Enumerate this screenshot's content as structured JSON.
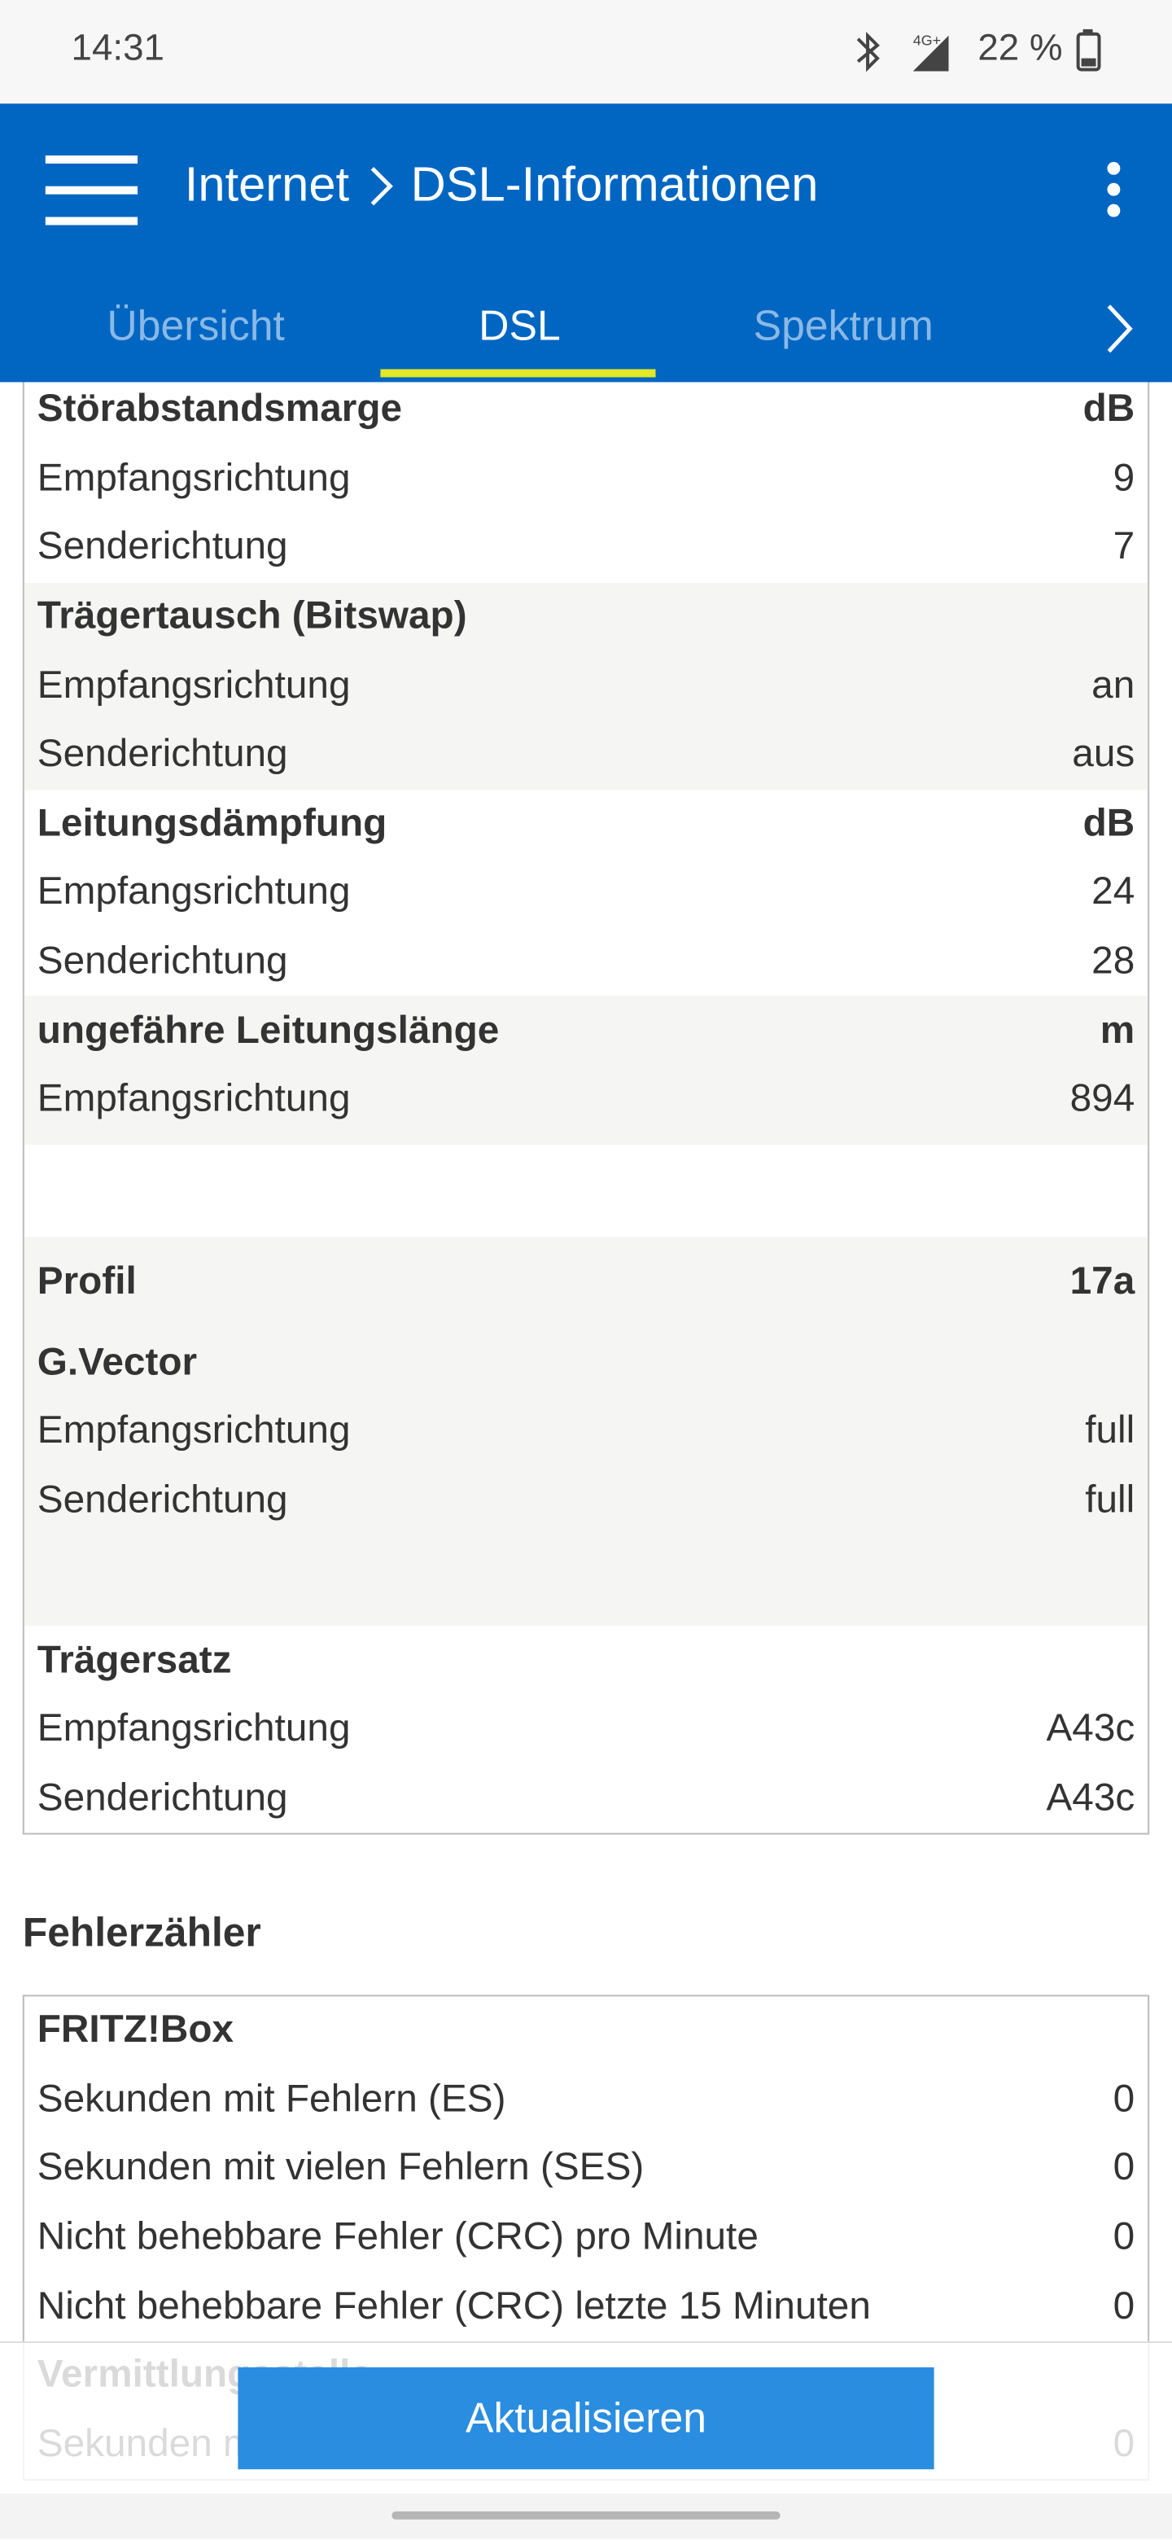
{
  "status_bar": {
    "time": "14:31",
    "network": "4G+",
    "battery": "22 %"
  },
  "app_bar": {
    "breadcrumb": [
      "Internet",
      "DSL-Informationen"
    ]
  },
  "tabs": {
    "items": [
      "Übersicht",
      "DSL",
      "Spektrum"
    ],
    "active": 1
  },
  "table": {
    "groups": [
      {
        "title": "Störabstandsmarge",
        "value": "dB",
        "rows": [
          [
            "Empfangsrichtung",
            "9"
          ],
          [
            "Senderichtung",
            "7"
          ]
        ]
      },
      {
        "title": "Trägertausch (Bitswap)",
        "rows": [
          [
            "Empfangsrichtung",
            "an"
          ],
          [
            "Senderichtung",
            "aus"
          ]
        ]
      },
      {
        "title": "Leitungsdämpfung",
        "value": "dB",
        "rows": [
          [
            "Empfangsrichtung",
            "24"
          ],
          [
            "Senderichtung",
            "28"
          ]
        ]
      },
      {
        "title": "ungefähre Leitungslänge",
        "value": "m",
        "rows": [
          [
            "Empfangsrichtung",
            "894"
          ]
        ]
      },
      {
        "title": "Profil",
        "value": "17a",
        "rows": []
      },
      {
        "title": "G.Vector",
        "rows": [
          [
            "Empfangsrichtung",
            "full"
          ],
          [
            "Senderichtung",
            "full"
          ]
        ]
      },
      {
        "title": "Trägersatz",
        "rows": [
          [
            "Empfangsrichtung",
            "A43c"
          ],
          [
            "Senderichtung",
            "A43c"
          ]
        ]
      }
    ]
  },
  "error_section": {
    "title": "Fehlerzähler",
    "groups": [
      {
        "title": "FRITZ!Box",
        "rows": [
          [
            "Sekunden mit Fehlern (ES)",
            "0"
          ],
          [
            "Sekunden mit vielen Fehlern (SES)",
            "0"
          ],
          [
            "Nicht behebbare Fehler (CRC) pro Minute",
            "0"
          ],
          [
            "Nicht behebbare Fehler (CRC) letzte 15 Minuten",
            "0"
          ]
        ]
      },
      {
        "title": "Vermittlungsstelle",
        "rows": [
          [
            "Sekunden mit Fehlern (ES)",
            "0"
          ]
        ]
      }
    ]
  },
  "button": "Aktualisieren"
}
